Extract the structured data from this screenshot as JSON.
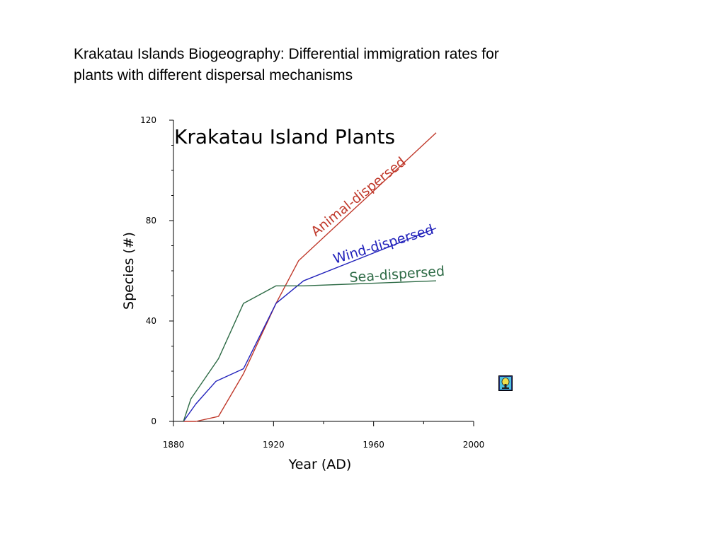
{
  "slide": {
    "title": "Krakatau Islands Biogeography:  Differential immigration rates for\nplants with different dispersal mechanisms"
  },
  "icons": {
    "corner_icon": "applet-icon"
  },
  "chart_data": {
    "type": "line",
    "title": "Krakatau Island Plants",
    "xlabel": "Year (AD)",
    "ylabel": "Species (#)",
    "xlim": [
      1880,
      2000
    ],
    "ylim": [
      0,
      120
    ],
    "xticks": [
      1880,
      1920,
      1960,
      2000
    ],
    "yticks": [
      0,
      40,
      80,
      120
    ],
    "grid": false,
    "legend": "none",
    "series": [
      {
        "name": "Animal-dispersed",
        "color": "#c0392b",
        "x": [
          1884,
          1889,
          1898,
          1908,
          1921,
          1930,
          1985
        ],
        "y": [
          0,
          0,
          2,
          19,
          47,
          64,
          115
        ]
      },
      {
        "name": "Wind-dispersed",
        "color": "#2222bb",
        "x": [
          1884,
          1889,
          1897,
          1908,
          1921,
          1932,
          1985
        ],
        "y": [
          0,
          7,
          16,
          21,
          47,
          56,
          77
        ]
      },
      {
        "name": "Sea-dispersed",
        "color": "#2e6b46",
        "x": [
          1884,
          1887,
          1898,
          1908,
          1921,
          1932,
          1985
        ],
        "y": [
          0,
          9,
          25,
          47,
          54,
          54,
          56
        ]
      }
    ]
  }
}
